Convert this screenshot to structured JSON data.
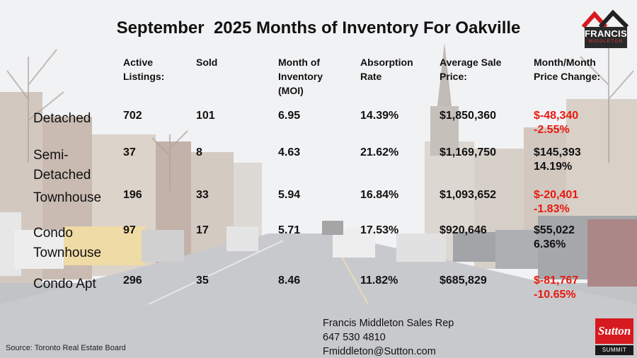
{
  "title": "September  2025 Months of Inventory For Oakville",
  "logo": {
    "line1": "FRANCIS",
    "line2": "MIDDLETON"
  },
  "headers": {
    "active": "Active\nListings:",
    "sold": "Sold",
    "moi": "Month of\nInventory\n(MOI)",
    "absorption": "Absorption\nRate",
    "avg_price": "Average Sale\nPrice:",
    "mom": "Month/Month\nPrice Change:"
  },
  "rows": [
    {
      "type": "Detached",
      "active": "702",
      "sold": "101",
      "moi": "6.95",
      "absorption": "14.39%",
      "avg_price": "$1,850,360",
      "mom_change": "$-48,340\n-2.55%"
    },
    {
      "type": "Semi-\nDetached",
      "active": "37",
      "sold": "8",
      "moi": "4.63",
      "absorption": "21.62%",
      "avg_price": "$1,169,750",
      "mom_change": "$145,393\n14.19%"
    },
    {
      "type": "Townhouse",
      "active": "196",
      "sold": "33",
      "moi": "5.94",
      "absorption": "16.84%",
      "avg_price": "$1,093,652",
      "mom_change": "$-20,401\n-1.83%"
    },
    {
      "type": "Condo\nTownhouse",
      "active": "97",
      "sold": "17",
      "moi": "5.71",
      "absorption": "17.53%",
      "avg_price": "$920,646",
      "mom_change": "$55,022\n6.36%"
    },
    {
      "type": "Condo Apt",
      "active": "296",
      "sold": "35",
      "moi": "8.46",
      "absorption": "11.82%",
      "avg_price": "$685,829",
      "mom_change": "$-81,767\n-10.65%"
    }
  ],
  "contact": {
    "name": "Francis Middleton Sales Rep",
    "phone": "647 530 4810",
    "email": "Fmiddleton@Sutton.com"
  },
  "source": "Source: Toronto Real Estate Board",
  "brokerage": {
    "name": "Sutton",
    "sub": "SUMMIT"
  },
  "colors": {
    "negative": "#e8190f",
    "text": "#111111"
  }
}
